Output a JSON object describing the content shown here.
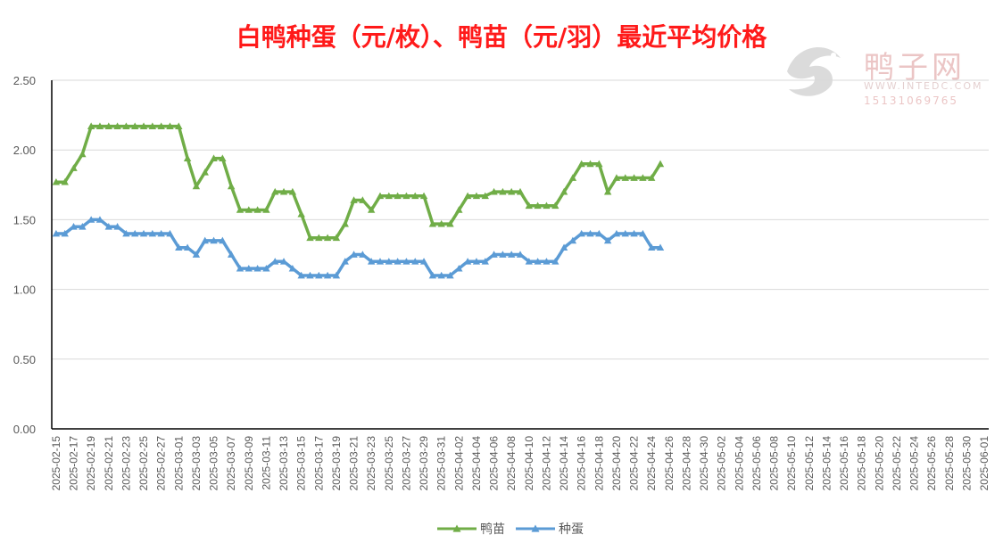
{
  "chart_data": {
    "type": "line",
    "title": "白鸭种蛋（元/枚）、鸭苗（元/羽）最近平均价格",
    "ylim": [
      0,
      2.5
    ],
    "y_ticks": [
      "0.00",
      "0.50",
      "1.00",
      "1.50",
      "2.00",
      "2.50"
    ],
    "grid": "horizontal",
    "legend_position": "bottom-center",
    "x_ticks": [
      "2025-02-15",
      "2025-02-17",
      "2025-02-19",
      "2025-02-21",
      "2025-02-23",
      "2025-02-25",
      "2025-02-27",
      "2025-03-01",
      "2025-03-03",
      "2025-03-05",
      "2025-03-07",
      "2025-03-09",
      "2025-03-11",
      "2025-03-13",
      "2025-03-15",
      "2025-03-17",
      "2025-03-19",
      "2025-03-21",
      "2025-03-23",
      "2025-03-25",
      "2025-03-27",
      "2025-03-29",
      "2025-03-31",
      "2025-04-02",
      "2025-04-04",
      "2025-04-06",
      "2025-04-08",
      "2025-04-10",
      "2025-04-12",
      "2025-04-14",
      "2025-04-16",
      "2025-04-18",
      "2025-04-20",
      "2025-04-22",
      "2025-04-24",
      "2025-04-26",
      "2025-04-28",
      "2025-04-30",
      "2025-05-02",
      "2025-05-04",
      "2025-05-06",
      "2025-05-08",
      "2025-05-10",
      "2025-05-12",
      "2025-05-14",
      "2025-05-16",
      "2025-05-18",
      "2025-05-20",
      "2025-05-22",
      "2025-05-24",
      "2025-05-26",
      "2025-05-28",
      "2025-05-30",
      "2025-06-01"
    ],
    "x_start": "2025-02-15",
    "x_end": "2025-06-02",
    "series": [
      {
        "name": "鸭苗",
        "color": "#70ad47",
        "points": [
          [
            "2025-02-15",
            1.77
          ],
          [
            "2025-02-16",
            1.77
          ],
          [
            "2025-02-17",
            1.87
          ],
          [
            "2025-02-18",
            1.97
          ],
          [
            "2025-02-19",
            2.17
          ],
          [
            "2025-02-20",
            2.17
          ],
          [
            "2025-02-21",
            2.17
          ],
          [
            "2025-02-22",
            2.17
          ],
          [
            "2025-02-23",
            2.17
          ],
          [
            "2025-02-24",
            2.17
          ],
          [
            "2025-02-25",
            2.17
          ],
          [
            "2025-02-26",
            2.17
          ],
          [
            "2025-02-27",
            2.17
          ],
          [
            "2025-02-28",
            2.17
          ],
          [
            "2025-03-01",
            2.17
          ],
          [
            "2025-03-02",
            1.94
          ],
          [
            "2025-03-03",
            1.74
          ],
          [
            "2025-03-04",
            1.84
          ],
          [
            "2025-03-05",
            1.94
          ],
          [
            "2025-03-06",
            1.94
          ],
          [
            "2025-03-07",
            1.74
          ],
          [
            "2025-03-08",
            1.57
          ],
          [
            "2025-03-09",
            1.57
          ],
          [
            "2025-03-10",
            1.57
          ],
          [
            "2025-03-11",
            1.57
          ],
          [
            "2025-03-12",
            1.7
          ],
          [
            "2025-03-13",
            1.7
          ],
          [
            "2025-03-14",
            1.7
          ],
          [
            "2025-03-15",
            1.54
          ],
          [
            "2025-03-16",
            1.37
          ],
          [
            "2025-03-17",
            1.37
          ],
          [
            "2025-03-18",
            1.37
          ],
          [
            "2025-03-19",
            1.37
          ],
          [
            "2025-03-20",
            1.47
          ],
          [
            "2025-03-21",
            1.64
          ],
          [
            "2025-03-22",
            1.64
          ],
          [
            "2025-03-23",
            1.57
          ],
          [
            "2025-03-24",
            1.67
          ],
          [
            "2025-03-25",
            1.67
          ],
          [
            "2025-03-26",
            1.67
          ],
          [
            "2025-03-27",
            1.67
          ],
          [
            "2025-03-28",
            1.67
          ],
          [
            "2025-03-29",
            1.67
          ],
          [
            "2025-03-30",
            1.47
          ],
          [
            "2025-03-31",
            1.47
          ],
          [
            "2025-04-01",
            1.47
          ],
          [
            "2025-04-02",
            1.57
          ],
          [
            "2025-04-03",
            1.67
          ],
          [
            "2025-04-04",
            1.67
          ],
          [
            "2025-04-05",
            1.67
          ],
          [
            "2025-04-06",
            1.7
          ],
          [
            "2025-04-07",
            1.7
          ],
          [
            "2025-04-08",
            1.7
          ],
          [
            "2025-04-09",
            1.7
          ],
          [
            "2025-04-10",
            1.6
          ],
          [
            "2025-04-11",
            1.6
          ],
          [
            "2025-04-12",
            1.6
          ],
          [
            "2025-04-13",
            1.6
          ],
          [
            "2025-04-14",
            1.7
          ],
          [
            "2025-04-15",
            1.8
          ],
          [
            "2025-04-16",
            1.9
          ],
          [
            "2025-04-17",
            1.9
          ],
          [
            "2025-04-18",
            1.9
          ],
          [
            "2025-04-19",
            1.7
          ],
          [
            "2025-04-20",
            1.8
          ],
          [
            "2025-04-21",
            1.8
          ],
          [
            "2025-04-22",
            1.8
          ],
          [
            "2025-04-23",
            1.8
          ],
          [
            "2025-04-24",
            1.8
          ],
          [
            "2025-04-25",
            1.9
          ]
        ]
      },
      {
        "name": "种蛋",
        "color": "#5b9bd5",
        "points": [
          [
            "2025-02-15",
            1.4
          ],
          [
            "2025-02-16",
            1.4
          ],
          [
            "2025-02-17",
            1.45
          ],
          [
            "2025-02-18",
            1.45
          ],
          [
            "2025-02-19",
            1.5
          ],
          [
            "2025-02-20",
            1.5
          ],
          [
            "2025-02-21",
            1.45
          ],
          [
            "2025-02-22",
            1.45
          ],
          [
            "2025-02-23",
            1.4
          ],
          [
            "2025-02-24",
            1.4
          ],
          [
            "2025-02-25",
            1.4
          ],
          [
            "2025-02-26",
            1.4
          ],
          [
            "2025-02-27",
            1.4
          ],
          [
            "2025-02-28",
            1.4
          ],
          [
            "2025-03-01",
            1.3
          ],
          [
            "2025-03-02",
            1.3
          ],
          [
            "2025-03-03",
            1.25
          ],
          [
            "2025-03-04",
            1.35
          ],
          [
            "2025-03-05",
            1.35
          ],
          [
            "2025-03-06",
            1.35
          ],
          [
            "2025-03-07",
            1.25
          ],
          [
            "2025-03-08",
            1.15
          ],
          [
            "2025-03-09",
            1.15
          ],
          [
            "2025-03-10",
            1.15
          ],
          [
            "2025-03-11",
            1.15
          ],
          [
            "2025-03-12",
            1.2
          ],
          [
            "2025-03-13",
            1.2
          ],
          [
            "2025-03-14",
            1.15
          ],
          [
            "2025-03-15",
            1.1
          ],
          [
            "2025-03-16",
            1.1
          ],
          [
            "2025-03-17",
            1.1
          ],
          [
            "2025-03-18",
            1.1
          ],
          [
            "2025-03-19",
            1.1
          ],
          [
            "2025-03-20",
            1.2
          ],
          [
            "2025-03-21",
            1.25
          ],
          [
            "2025-03-22",
            1.25
          ],
          [
            "2025-03-23",
            1.2
          ],
          [
            "2025-03-24",
            1.2
          ],
          [
            "2025-03-25",
            1.2
          ],
          [
            "2025-03-26",
            1.2
          ],
          [
            "2025-03-27",
            1.2
          ],
          [
            "2025-03-28",
            1.2
          ],
          [
            "2025-03-29",
            1.2
          ],
          [
            "2025-03-30",
            1.1
          ],
          [
            "2025-03-31",
            1.1
          ],
          [
            "2025-04-01",
            1.1
          ],
          [
            "2025-04-02",
            1.15
          ],
          [
            "2025-04-03",
            1.2
          ],
          [
            "2025-04-04",
            1.2
          ],
          [
            "2025-04-05",
            1.2
          ],
          [
            "2025-04-06",
            1.25
          ],
          [
            "2025-04-07",
            1.25
          ],
          [
            "2025-04-08",
            1.25
          ],
          [
            "2025-04-09",
            1.25
          ],
          [
            "2025-04-10",
            1.2
          ],
          [
            "2025-04-11",
            1.2
          ],
          [
            "2025-04-12",
            1.2
          ],
          [
            "2025-04-13",
            1.2
          ],
          [
            "2025-04-14",
            1.3
          ],
          [
            "2025-04-15",
            1.35
          ],
          [
            "2025-04-16",
            1.4
          ],
          [
            "2025-04-17",
            1.4
          ],
          [
            "2025-04-18",
            1.4
          ],
          [
            "2025-04-19",
            1.35
          ],
          [
            "2025-04-20",
            1.4
          ],
          [
            "2025-04-21",
            1.4
          ],
          [
            "2025-04-22",
            1.4
          ],
          [
            "2025-04-23",
            1.4
          ],
          [
            "2025-04-24",
            1.3
          ],
          [
            "2025-04-25",
            1.3
          ]
        ]
      }
    ]
  },
  "watermark": {
    "brand": "鸭子网",
    "url": "WWW.INTEDC.COM",
    "phone": "15131069765"
  }
}
